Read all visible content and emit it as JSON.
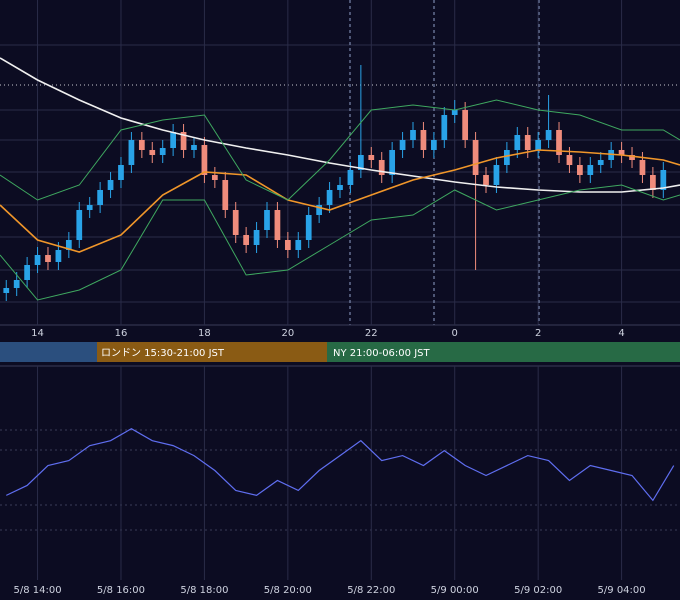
{
  "chart_data": [
    {
      "type": "candlestick",
      "x": [
        13.25,
        13.5,
        13.75,
        14,
        14.25,
        14.5,
        14.75,
        15,
        15.25,
        15.5,
        15.75,
        16,
        16.25,
        16.5,
        16.75,
        17,
        17.25,
        17.5,
        17.75,
        18,
        18.25,
        18.5,
        18.75,
        19,
        19.25,
        19.5,
        19.75,
        20,
        20.25,
        20.5,
        20.75,
        21,
        21.25,
        21.5,
        21.75,
        22,
        22.25,
        22.5,
        22.75,
        23,
        23.25,
        23.5,
        23.75,
        24,
        24.25,
        24.5,
        24.75,
        25,
        25.25,
        25.5,
        25.75,
        26,
        26.25,
        26.5,
        26.75,
        27,
        27.25,
        27.5,
        27.75,
        28,
        28.25,
        28.5,
        28.75,
        29
      ],
      "open": [
        32,
        37,
        45,
        60,
        70,
        63,
        75,
        85,
        115,
        120,
        135,
        145,
        160,
        185,
        175,
        170,
        177,
        193,
        175,
        180,
        150,
        145,
        115,
        90,
        80,
        95,
        115,
        85,
        75,
        85,
        110,
        120,
        135,
        140,
        155,
        170,
        165,
        150,
        175,
        185,
        195,
        175,
        185,
        210,
        215,
        185,
        150,
        140,
        160,
        175,
        190,
        175,
        185,
        195,
        170,
        160,
        150,
        160,
        165,
        175,
        170,
        165,
        150,
        135
      ],
      "high": [
        45,
        53,
        68,
        78,
        78,
        83,
        93,
        123,
        128,
        143,
        153,
        168,
        193,
        193,
        183,
        185,
        201,
        201,
        188,
        188,
        158,
        153,
        123,
        98,
        103,
        123,
        123,
        93,
        93,
        118,
        128,
        143,
        148,
        163,
        260,
        178,
        173,
        183,
        193,
        203,
        203,
        193,
        218,
        225,
        223,
        193,
        158,
        168,
        183,
        198,
        198,
        193,
        230,
        203,
        178,
        168,
        168,
        173,
        183,
        183,
        178,
        173,
        158,
        163
      ],
      "low": [
        24,
        29,
        37,
        52,
        55,
        55,
        67,
        77,
        107,
        112,
        127,
        137,
        152,
        167,
        162,
        162,
        169,
        167,
        167,
        142,
        137,
        107,
        82,
        72,
        72,
        87,
        77,
        67,
        67,
        77,
        102,
        112,
        127,
        132,
        147,
        157,
        142,
        142,
        167,
        177,
        167,
        167,
        177,
        202,
        177,
        55,
        132,
        132,
        152,
        167,
        167,
        167,
        177,
        162,
        152,
        142,
        142,
        152,
        157,
        162,
        157,
        142,
        127,
        127
      ],
      "close": [
        37,
        45,
        60,
        70,
        63,
        75,
        85,
        115,
        120,
        135,
        145,
        160,
        185,
        175,
        170,
        177,
        193,
        175,
        180,
        150,
        145,
        115,
        90,
        80,
        95,
        115,
        85,
        75,
        85,
        110,
        120,
        135,
        140,
        155,
        170,
        165,
        150,
        175,
        185,
        195,
        175,
        185,
        210,
        215,
        185,
        150,
        140,
        160,
        175,
        190,
        175,
        185,
        195,
        170,
        160,
        150,
        160,
        165,
        175,
        170,
        165,
        150,
        135,
        155
      ],
      "up_color": "#29a3e8",
      "down_color": "#f08c7c",
      "lines": {
        "x": [
          13.1,
          14,
          15,
          16,
          17,
          18,
          19,
          20,
          21,
          22,
          23,
          24,
          25,
          26,
          27,
          28,
          29,
          29.4
        ],
        "series": [
          {
            "color": "#f0f0f0",
            "values": [
              267,
              245,
              225,
              207,
              195,
              185,
              177,
              170,
              162,
              155,
              149,
              143,
              138,
              135,
              133,
              133,
              137,
              140
            ]
          },
          {
            "color": "#f0962a",
            "values": [
              120,
              85,
              73,
              90,
              130,
              153,
              150,
              125,
              115,
              130,
              145,
              155,
              167,
              175,
              173,
              170,
              165,
              160
            ]
          },
          {
            "color": "#3fa860",
            "values": [
              150,
              125,
              140,
              195,
              205,
              210,
              145,
              125,
              165,
              215,
              220,
              215,
              225,
              215,
              210,
              195,
              195,
              185
            ]
          },
          {
            "color": "#3fa860",
            "values": [
              70,
              25,
              35,
              55,
              125,
              125,
              50,
              55,
              80,
              105,
              110,
              135,
              115,
              125,
              135,
              140,
              125,
              130
            ]
          }
        ]
      },
      "xlim": [
        13.1,
        29.4
      ],
      "ylim": [
        0,
        325
      ],
      "xticks": [
        14,
        16,
        18,
        20,
        22,
        {
          "value": 24,
          "label": "0"
        },
        {
          "value": 26,
          "label": "2"
        },
        {
          "value": 28,
          "label": "4"
        }
      ]
    },
    {
      "type": "line",
      "x": [
        13.25,
        13.75,
        14.25,
        14.75,
        15.25,
        15.75,
        16.25,
        16.75,
        17.25,
        17.75,
        18.25,
        18.75,
        19.25,
        19.75,
        20.25,
        20.75,
        21.25,
        21.75,
        22.25,
        22.75,
        23.25,
        23.75,
        24.25,
        24.75,
        25.25,
        25.75,
        26.25,
        26.75,
        27.25,
        27.75,
        28.25,
        28.75,
        29.25
      ],
      "values": [
        85,
        95,
        115,
        120,
        135,
        140,
        152,
        140,
        135,
        125,
        110,
        90,
        85,
        100,
        90,
        110,
        125,
        140,
        120,
        125,
        115,
        130,
        115,
        105,
        115,
        125,
        120,
        100,
        115,
        110,
        105,
        80,
        115
      ],
      "color": "#5f6ef0",
      "xlim": [
        13.1,
        29.4
      ],
      "ylim": [
        0,
        215
      ],
      "xticks": [
        {
          "value": 14,
          "label": "5/8 14:00"
        },
        {
          "value": 16,
          "label": "5/8 16:00"
        },
        {
          "value": 18,
          "label": "5/8 18:00"
        },
        {
          "value": 20,
          "label": "5/8 20:00"
        },
        {
          "value": 22,
          "label": "5/8 22:00"
        },
        {
          "value": 24,
          "label": "5/9 00:00"
        },
        {
          "value": 26,
          "label": "5/9 02:00"
        },
        {
          "value": 28,
          "label": "5/9 04:00"
        }
      ]
    }
  ],
  "sessions": [
    {
      "label": "ロンドン 15:30-21:00 JST"
    },
    {
      "label": "NY 21:00-06:00 JST"
    }
  ]
}
